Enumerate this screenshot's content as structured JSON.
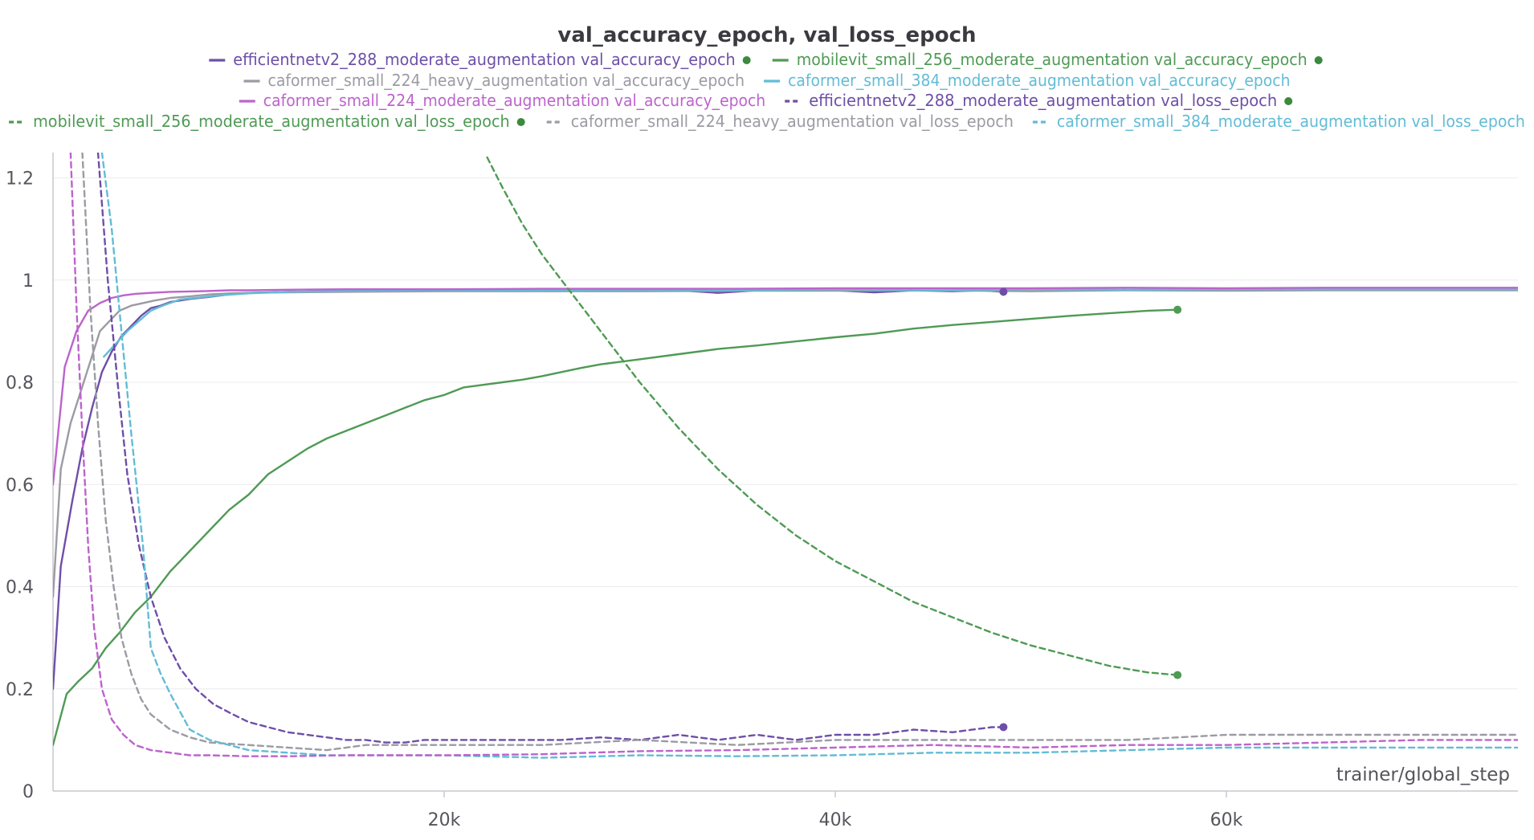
{
  "chart_data": {
    "type": "line",
    "title": "val_accuracy_epoch, val_loss_epoch",
    "xlabel": "trainer/global_step",
    "ylabel": "",
    "xlim": [
      0,
      75000
    ],
    "ylim": [
      0,
      1.25
    ],
    "x_ticks": [
      20000,
      40000,
      60000
    ],
    "x_tick_labels": [
      "20k",
      "40k",
      "60k"
    ],
    "y_ticks": [
      0,
      0.2,
      0.4,
      0.6,
      0.8,
      1,
      1.2
    ],
    "y_tick_labels": [
      "0",
      "0.2",
      "0.4",
      "0.6",
      "0.8",
      "1",
      "1.2"
    ],
    "grid": true,
    "legend_position": "top",
    "series": [
      {
        "name": "efficientnetv2_288_moderate_augmentation val_accuracy_epoch",
        "color": "#6e4fa8",
        "dash": "solid",
        "end_marker": true,
        "x": [
          0,
          400,
          1000,
          1500,
          2000,
          2500,
          3000,
          3500,
          4000,
          4500,
          5000,
          5500,
          6000,
          7000,
          8000,
          9000,
          10000,
          12000,
          14000,
          16000,
          18000,
          20000,
          22000,
          24000,
          26000,
          28000,
          30000,
          32000,
          34000,
          36000,
          38000,
          40000,
          42000,
          44000,
          46000,
          47500,
          48600
        ],
        "y": [
          0.2,
          0.44,
          0.57,
          0.67,
          0.75,
          0.82,
          0.86,
          0.89,
          0.91,
          0.93,
          0.945,
          0.95,
          0.957,
          0.963,
          0.967,
          0.972,
          0.975,
          0.977,
          0.978,
          0.979,
          0.979,
          0.98,
          0.98,
          0.979,
          0.98,
          0.98,
          0.979,
          0.98,
          0.975,
          0.98,
          0.98,
          0.98,
          0.976,
          0.98,
          0.978,
          0.98,
          0.977
        ]
      },
      {
        "name": "mobilevit_small_256_moderate_augmentation val_accuracy_epoch",
        "color": "#4f9a55",
        "dash": "solid",
        "end_marker": true,
        "x": [
          0,
          700,
          1300,
          2000,
          2700,
          3400,
          4200,
          5000,
          6000,
          7000,
          8000,
          9000,
          10000,
          11000,
          12000,
          13000,
          14000,
          15000,
          16000,
          17000,
          18000,
          19000,
          20000,
          21000,
          22000,
          23000,
          24000,
          25000,
          26000,
          27000,
          28000,
          29000,
          30000,
          32000,
          34000,
          36000,
          38000,
          40000,
          42000,
          44000,
          46000,
          48000,
          50000,
          52000,
          54000,
          56000,
          57500
        ],
        "y": [
          0.09,
          0.19,
          0.215,
          0.24,
          0.28,
          0.31,
          0.35,
          0.38,
          0.43,
          0.47,
          0.51,
          0.55,
          0.58,
          0.62,
          0.645,
          0.67,
          0.69,
          0.705,
          0.72,
          0.735,
          0.75,
          0.765,
          0.775,
          0.79,
          0.795,
          0.8,
          0.805,
          0.812,
          0.82,
          0.828,
          0.835,
          0.84,
          0.845,
          0.855,
          0.865,
          0.872,
          0.88,
          0.888,
          0.895,
          0.905,
          0.912,
          0.918,
          0.924,
          0.93,
          0.935,
          0.94,
          0.942
        ]
      },
      {
        "name": "caformer_small_224_heavy_augmentation val_accuracy_epoch",
        "color": "#9b9ba3",
        "dash": "solid",
        "end_marker": false,
        "x": [
          0,
          400,
          900,
          1400,
          1900,
          2400,
          2900,
          3400,
          4000,
          4600,
          5200,
          6000,
          7000,
          8000,
          9000,
          10000,
          12000,
          15000,
          20000,
          25000,
          30000,
          35000,
          40000,
          45000,
          50000,
          55000,
          60000,
          65000,
          70000,
          75000
        ],
        "y": [
          0.38,
          0.63,
          0.72,
          0.78,
          0.84,
          0.9,
          0.92,
          0.94,
          0.95,
          0.955,
          0.96,
          0.965,
          0.968,
          0.972,
          0.974,
          0.975,
          0.976,
          0.977,
          0.978,
          0.978,
          0.978,
          0.979,
          0.979,
          0.98,
          0.978,
          0.98,
          0.979,
          0.98,
          0.98,
          0.98
        ]
      },
      {
        "name": "caformer_small_384_moderate_augmentation val_accuracy_epoch",
        "color": "#62bcd6",
        "dash": "solid",
        "end_marker": false,
        "x": [
          2600,
          3200,
          3800,
          4400,
          5000,
          5600,
          6500,
          7500,
          8500,
          10000,
          12000,
          15000,
          20000,
          25000,
          30000,
          35000,
          40000,
          45000,
          50000,
          55000,
          60000,
          65000,
          70000,
          75000
        ],
        "y": [
          0.85,
          0.875,
          0.9,
          0.92,
          0.94,
          0.95,
          0.962,
          0.966,
          0.97,
          0.974,
          0.977,
          0.979,
          0.98,
          0.98,
          0.981,
          0.98,
          0.982,
          0.98,
          0.982,
          0.981,
          0.982,
          0.982,
          0.982,
          0.982
        ]
      },
      {
        "name": "caformer_small_224_moderate_augmentation val_accuracy_epoch",
        "color": "#bd63cd",
        "dash": "solid",
        "end_marker": false,
        "x": [
          0,
          600,
          1200,
          1800,
          2400,
          3000,
          3600,
          4200,
          5000,
          6000,
          7500,
          9000,
          10000,
          12000,
          15000,
          20000,
          25000,
          30000,
          35000,
          40000,
          45000,
          50000,
          55000,
          60000,
          65000,
          70000,
          75000
        ],
        "y": [
          0.6,
          0.83,
          0.9,
          0.94,
          0.955,
          0.965,
          0.97,
          0.973,
          0.975,
          0.977,
          0.978,
          0.98,
          0.98,
          0.981,
          0.982,
          0.982,
          0.983,
          0.983,
          0.983,
          0.984,
          0.984,
          0.984,
          0.985,
          0.984,
          0.985,
          0.985,
          0.985
        ]
      },
      {
        "name": "efficientnetv2_288_moderate_augmentation val_loss_epoch",
        "color": "#6e4fa8",
        "dash": "dashed",
        "end_marker": true,
        "x": [
          2300,
          2800,
          3300,
          3800,
          4400,
          5000,
          5700,
          6500,
          7300,
          8200,
          9200,
          10000,
          11000,
          12000,
          13000,
          14000,
          15000,
          16000,
          17000,
          18000,
          19000,
          20000,
          22000,
          24000,
          26000,
          28000,
          30000,
          32000,
          34000,
          36000,
          38000,
          40000,
          42000,
          44000,
          46000,
          47000,
          48000,
          48600
        ],
        "y": [
          1.25,
          1.0,
          0.8,
          0.62,
          0.48,
          0.38,
          0.3,
          0.24,
          0.2,
          0.17,
          0.15,
          0.135,
          0.125,
          0.115,
          0.11,
          0.105,
          0.1,
          0.1,
          0.095,
          0.095,
          0.1,
          0.1,
          0.1,
          0.1,
          0.1,
          0.105,
          0.1,
          0.11,
          0.1,
          0.11,
          0.1,
          0.11,
          0.11,
          0.12,
          0.115,
          0.12,
          0.125,
          0.125
        ]
      },
      {
        "name": "mobilevit_small_256_moderate_augmentation val_loss_epoch",
        "color": "#4f9a55",
        "dash": "dashed",
        "end_marker": true,
        "x": [
          22200,
          23000,
          24000,
          25000,
          26000,
          27000,
          28000,
          29000,
          30000,
          32000,
          34000,
          36000,
          38000,
          40000,
          42000,
          44000,
          46000,
          48000,
          50000,
          52000,
          54000,
          56000,
          57500
        ],
        "y": [
          1.24,
          1.18,
          1.11,
          1.05,
          1.0,
          0.95,
          0.9,
          0.85,
          0.8,
          0.71,
          0.63,
          0.56,
          0.5,
          0.45,
          0.41,
          0.37,
          0.34,
          0.31,
          0.285,
          0.265,
          0.245,
          0.232,
          0.227
        ]
      },
      {
        "name": "caformer_small_224_heavy_augmentation val_loss_epoch",
        "color": "#9b9ba3",
        "dash": "dashed",
        "end_marker": false,
        "x": [
          1500,
          1900,
          2300,
          2700,
          3100,
          3500,
          4000,
          4500,
          5000,
          6000,
          7000,
          8000,
          10000,
          12000,
          14000,
          16000,
          20000,
          25000,
          30000,
          35000,
          40000,
          45000,
          50000,
          55000,
          60000,
          65000,
          70000,
          75000
        ],
        "y": [
          1.25,
          0.95,
          0.72,
          0.53,
          0.4,
          0.3,
          0.23,
          0.18,
          0.15,
          0.12,
          0.105,
          0.095,
          0.09,
          0.085,
          0.08,
          0.09,
          0.09,
          0.09,
          0.1,
          0.09,
          0.1,
          0.1,
          0.1,
          0.1,
          0.11,
          0.11,
          0.11,
          0.11
        ]
      },
      {
        "name": "caformer_small_384_moderate_augmentation val_loss_epoch",
        "color": "#62bcd6",
        "dash": "dashed",
        "end_marker": false,
        "x": [
          2500,
          3000,
          3500,
          4000,
          4600,
          5000,
          5500,
          6000,
          7000,
          8000,
          9000,
          10000,
          12000,
          14000,
          16000,
          20000,
          25000,
          30000,
          35000,
          40000,
          45000,
          50000,
          55000,
          60000,
          65000,
          70000,
          75000
        ],
        "y": [
          1.25,
          1.1,
          0.9,
          0.7,
          0.48,
          0.28,
          0.23,
          0.19,
          0.12,
          0.1,
          0.09,
          0.08,
          0.075,
          0.07,
          0.07,
          0.07,
          0.065,
          0.07,
          0.068,
          0.07,
          0.075,
          0.075,
          0.08,
          0.085,
          0.085,
          0.085,
          0.085
        ]
      },
      {
        "name": "caformer_small_224_moderate_augmentation val_loss_epoch",
        "color": "#bd63cd",
        "dash": "dashed",
        "end_marker": false,
        "x": [
          900,
          1200,
          1500,
          1800,
          2100,
          2500,
          3000,
          3600,
          4200,
          5000,
          6000,
          7000,
          8000,
          10000,
          12000,
          15000,
          20000,
          25000,
          30000,
          35000,
          40000,
          45000,
          50000,
          55000,
          60000,
          65000,
          70000,
          75000
        ],
        "y": [
          1.25,
          0.95,
          0.7,
          0.48,
          0.32,
          0.2,
          0.14,
          0.11,
          0.09,
          0.08,
          0.075,
          0.07,
          0.07,
          0.068,
          0.068,
          0.07,
          0.07,
          0.072,
          0.078,
          0.08,
          0.085,
          0.09,
          0.085,
          0.09,
          0.09,
          0.095,
          0.1,
          0.1
        ]
      }
    ]
  }
}
